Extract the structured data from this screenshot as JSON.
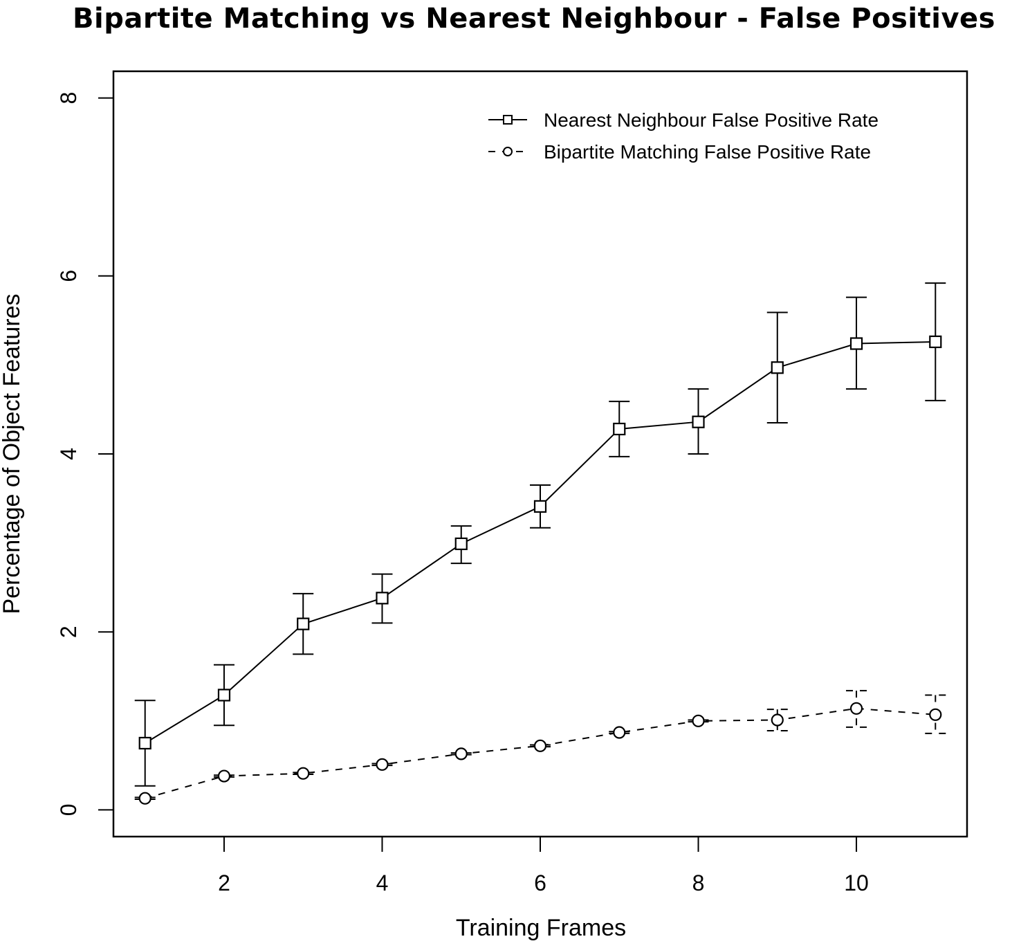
{
  "chart_data": {
    "type": "line",
    "title": "Bipartite Matching vs Nearest Neighbour - False Positives",
    "xlabel": "Training Frames",
    "ylabel": "Percentage of Object Features",
    "xlim": [
      0.6,
      11.4
    ],
    "ylim": [
      -0.3,
      8.3
    ],
    "x_ticks": [
      2,
      4,
      6,
      8,
      10
    ],
    "y_ticks": [
      0,
      2,
      4,
      6,
      8
    ],
    "x_tick_labels": [
      "2",
      "4",
      "6",
      "8",
      "10"
    ],
    "y_tick_labels": [
      "0",
      "2",
      "4",
      "6",
      "8"
    ],
    "grid": false,
    "legend_position": "top-right",
    "x": [
      1,
      2,
      3,
      4,
      5,
      6,
      7,
      8,
      9,
      10,
      11
    ],
    "series": [
      {
        "name": "Nearest Neighbour False Positive Rate",
        "line_style": "solid",
        "marker": "square",
        "color": "#000000",
        "values": [
          0.75,
          1.29,
          2.09,
          2.38,
          2.99,
          3.41,
          4.28,
          4.36,
          4.97,
          5.24,
          5.26
        ],
        "error_upper": [
          1.23,
          1.63,
          2.43,
          2.65,
          3.19,
          3.65,
          4.59,
          4.73,
          5.59,
          5.76,
          5.92
        ],
        "error_lower": [
          0.27,
          0.95,
          1.75,
          2.1,
          2.77,
          3.17,
          3.97,
          4.0,
          4.35,
          4.73,
          4.6
        ]
      },
      {
        "name": "Bipartite Matching False Positive Rate",
        "line_style": "dashed",
        "marker": "circle",
        "color": "#000000",
        "values": [
          0.13,
          0.38,
          0.41,
          0.51,
          0.63,
          0.72,
          0.87,
          1.0,
          1.01,
          1.14,
          1.07
        ],
        "error_upper": [
          0.14,
          0.39,
          0.42,
          0.52,
          0.64,
          0.73,
          0.88,
          1.01,
          1.13,
          1.34,
          1.29
        ],
        "error_lower": [
          0.12,
          0.37,
          0.4,
          0.5,
          0.62,
          0.71,
          0.86,
          0.99,
          0.89,
          0.93,
          0.86
        ]
      }
    ]
  }
}
